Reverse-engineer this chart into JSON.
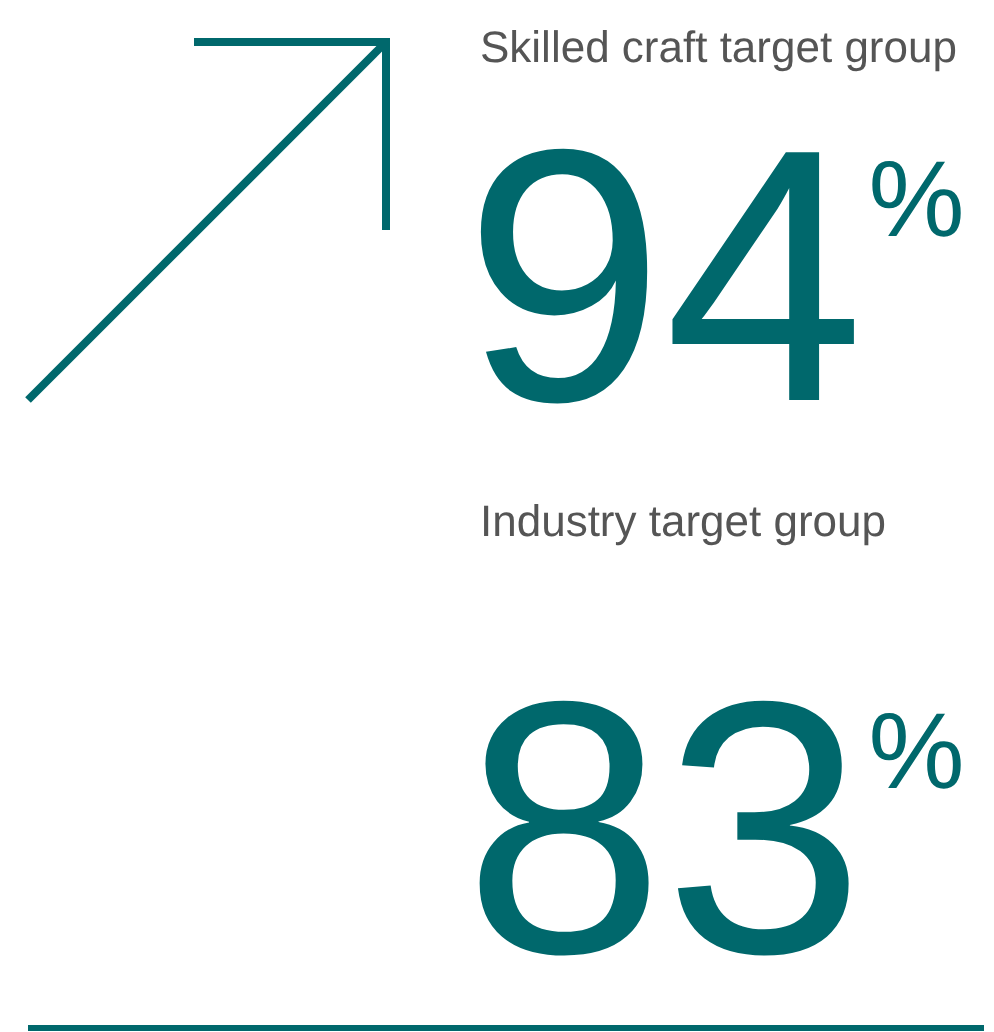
{
  "chart_data": {
    "type": "other",
    "categories": [
      "Skilled craft target group",
      "Industry target group"
    ],
    "values": [
      94,
      83
    ],
    "value_labels": [
      "94$^{%}$",
      "83$^{%}$"
    ],
    "color": "#00686c"
  }
}
